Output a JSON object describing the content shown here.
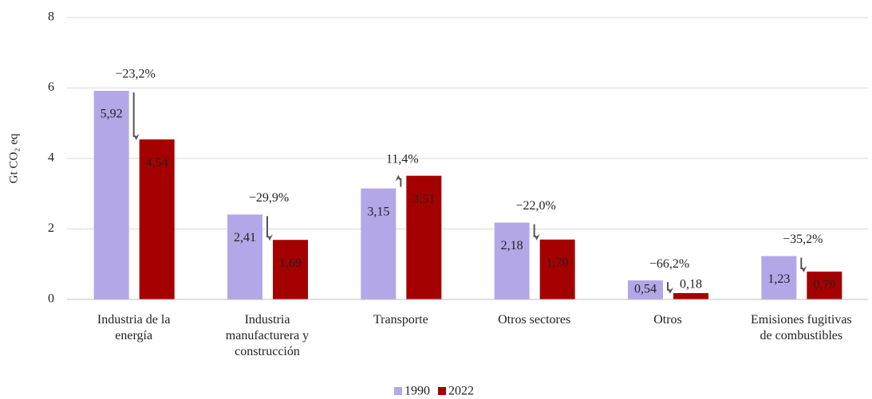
{
  "chart_data": {
    "type": "bar",
    "ylabel": "Gt CO₂ eq",
    "categories": [
      "Industria de la\nenergía",
      "Industria\nmanufacturera y\nconstrucción",
      "Transporte",
      "Otros sectores",
      "Otros",
      "Emisiones fugitivas\nde combustibles"
    ],
    "series": [
      {
        "name": "1990",
        "color": "#b4a7e8",
        "values": [
          5.92,
          2.41,
          3.15,
          2.18,
          0.54,
          1.23
        ],
        "value_labels": [
          "5,92",
          "2,41",
          "3,15",
          "2,18",
          "0,54",
          "1,23"
        ]
      },
      {
        "name": "2022",
        "color": "#a50000",
        "values": [
          4.54,
          1.69,
          3.51,
          1.7,
          0.18,
          0.79
        ],
        "value_labels": [
          "4,54",
          "1,69",
          "3,51",
          "1,70",
          "0,18",
          "0,79"
        ]
      }
    ],
    "annotations": [
      "−23,2%",
      "−29,9%",
      "11,4%",
      "−22,0%",
      "−66,2%",
      "−35,2%"
    ],
    "ylim": [
      0,
      8
    ],
    "yticks": [
      0,
      2,
      4,
      6,
      8
    ],
    "grid": true,
    "legend": "bottom"
  }
}
